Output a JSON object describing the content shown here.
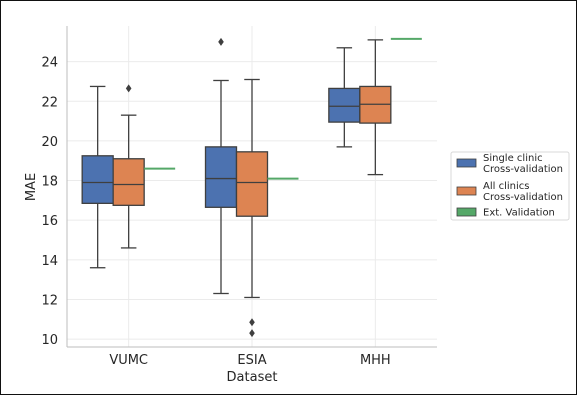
{
  "chart_data": {
    "type": "box",
    "title": "",
    "xlabel": "Dataset",
    "ylabel": "MAE",
    "ylim": [
      9.6,
      25.8
    ],
    "yticks": [
      10,
      12,
      14,
      16,
      18,
      20,
      22,
      24
    ],
    "grid": true,
    "legend_position": "right, outside plot",
    "categories": [
      "VUMC",
      "ESIA",
      "MHH"
    ],
    "series": [
      {
        "name": "Single clinic\nCross-validation",
        "color": "#4c72b0",
        "boxes": [
          {
            "whisker_low": 13.6,
            "q1": 16.85,
            "median": 17.9,
            "q3": 19.25,
            "whisker_high": 22.75,
            "outliers": []
          },
          {
            "whisker_low": 12.3,
            "q1": 16.65,
            "median": 18.1,
            "q3": 19.7,
            "whisker_high": 23.05,
            "outliers": [
              25.0
            ]
          },
          {
            "whisker_low": 19.7,
            "q1": 20.95,
            "median": 21.75,
            "q3": 22.65,
            "whisker_high": 24.7,
            "outliers": []
          }
        ]
      },
      {
        "name": "All clinics\nCross-validation",
        "color": "#dd8452",
        "boxes": [
          {
            "whisker_low": 14.6,
            "q1": 16.75,
            "median": 17.8,
            "q3": 19.1,
            "whisker_high": 21.3,
            "outliers": [
              22.65
            ]
          },
          {
            "whisker_low": 12.1,
            "q1": 16.2,
            "median": 17.9,
            "q3": 19.45,
            "whisker_high": 23.1,
            "outliers": [
              10.85,
              10.3
            ]
          },
          {
            "whisker_low": 18.3,
            "q1": 20.9,
            "median": 21.85,
            "q3": 22.75,
            "whisker_high": 25.1,
            "outliers": []
          }
        ]
      },
      {
        "name": "Ext. Validation",
        "color": "#55a868",
        "values": [
          18.6,
          18.1,
          25.15
        ]
      }
    ]
  }
}
